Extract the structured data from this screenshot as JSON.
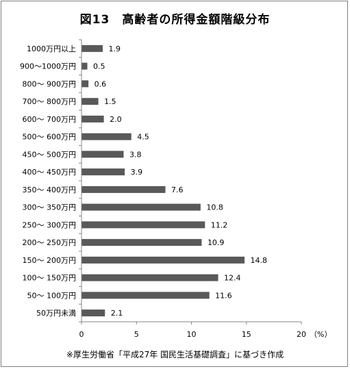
{
  "chart_data": {
    "type": "bar",
    "orientation": "horizontal",
    "title": "図13　高齢者の所得金額階級分布",
    "categories": [
      "1000万円以上",
      "900～1000万円",
      "800～ 900万円",
      "700～ 800万円",
      "600～ 700万円",
      "500～ 600万円",
      "450～ 500万円",
      "400～ 450万円",
      "350～ 400万円",
      "300～ 350万円",
      "250～ 300万円",
      "200～ 250万円",
      "150～ 200万円",
      "100～ 150万円",
      "50～ 100万円",
      "50万円未満"
    ],
    "values": [
      1.9,
      0.5,
      0.6,
      1.5,
      2.0,
      4.5,
      3.8,
      3.9,
      7.6,
      10.8,
      11.2,
      10.9,
      14.8,
      12.4,
      11.6,
      2.1
    ],
    "value_labels": [
      "1.9",
      "0.5",
      "0.6",
      "1.5",
      "2.0",
      "4.5",
      "3.8",
      "3.9",
      "7.6",
      "10.8",
      "11.2",
      "10.9",
      "14.8",
      "12.4",
      "11.6",
      "2.1"
    ],
    "xlim": [
      0,
      20
    ],
    "xticks": [
      "0",
      "5",
      "10",
      "15",
      "20"
    ],
    "xunit": "（%）",
    "bar_color": "#595959",
    "grid": false,
    "legend": "none"
  },
  "source_note": "※厚生労働省「平成27年 国民生活基礎調査」に基づき作成"
}
